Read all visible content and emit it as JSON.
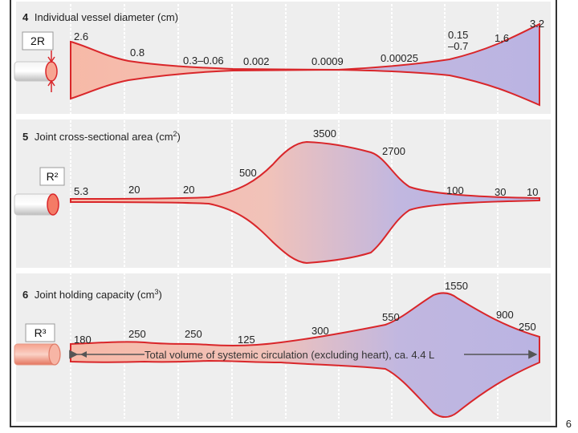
{
  "panels": [
    {
      "num": "4",
      "title": "Individual vessel diameter (cm)",
      "symbol": "2R",
      "values": [
        "2.6",
        "0.8",
        "0.3–0.06",
        "0.002",
        "0.0009",
        "0.00025",
        "0.15",
        "–0.7",
        "1,6",
        "3.2"
      ]
    },
    {
      "num": "5",
      "title": "Joint cross-sectional area (cm",
      "title_sup": "2",
      "title_end": ")",
      "symbol": "R²",
      "values": [
        "5.3",
        "20",
        "20",
        "500",
        "3500",
        "2700",
        "100",
        "30",
        "10"
      ]
    },
    {
      "num": "6",
      "title": "Joint holding capacity (cm",
      "title_sup": "3",
      "title_end": ")",
      "symbol": "R³",
      "values": [
        "180",
        "250",
        "250",
        "125",
        "300",
        "550",
        "1550",
        "900",
        "250"
      ],
      "note": "Total volume of systemic circulation (excluding heart), ca. 4.4 L"
    }
  ],
  "colors": {
    "artery": "#f6b8a6",
    "vein": "#bcb6e2",
    "outline": "#d9262a",
    "grid": "#c8c8c8",
    "panel_bg": "#eeeeee"
  },
  "slide_number": "6"
}
